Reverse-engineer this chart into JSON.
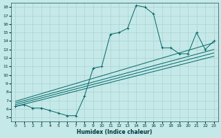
{
  "xlabel": "Humidex (Indice chaleur)",
  "bg_color": "#c5e8e8",
  "line_color": "#006666",
  "grid_color": "#aed0d0",
  "xlim": [
    -0.5,
    23.5
  ],
  "ylim": [
    4.5,
    18.5
  ],
  "xticks": [
    0,
    1,
    2,
    3,
    4,
    5,
    6,
    7,
    8,
    9,
    10,
    11,
    12,
    13,
    14,
    15,
    16,
    17,
    18,
    19,
    20,
    21,
    22,
    23
  ],
  "yticks": [
    5,
    6,
    7,
    8,
    9,
    10,
    11,
    12,
    13,
    14,
    15,
    16,
    17,
    18
  ],
  "main_x": [
    0,
    1,
    2,
    3,
    4,
    5,
    6,
    7,
    8,
    9,
    10,
    11,
    12,
    13,
    14,
    15,
    16,
    17,
    18,
    19,
    20,
    21,
    22,
    23
  ],
  "main_y": [
    6.3,
    6.5,
    6.1,
    6.1,
    5.8,
    5.5,
    5.2,
    5.2,
    7.5,
    10.8,
    11.0,
    14.8,
    15.0,
    15.5,
    18.2,
    18.0,
    17.2,
    13.2,
    13.2,
    12.5,
    12.5,
    15.0,
    13.0,
    14.0
  ],
  "diag_lines": [
    {
      "x0": 0,
      "y0": 6.3,
      "x1": 23,
      "y1": 12.2
    },
    {
      "x0": 0,
      "y0": 6.5,
      "x1": 23,
      "y1": 12.6
    },
    {
      "x0": 0,
      "y0": 6.7,
      "x1": 23,
      "y1": 13.0
    },
    {
      "x0": 0,
      "y0": 6.9,
      "x1": 23,
      "y1": 13.8
    }
  ]
}
